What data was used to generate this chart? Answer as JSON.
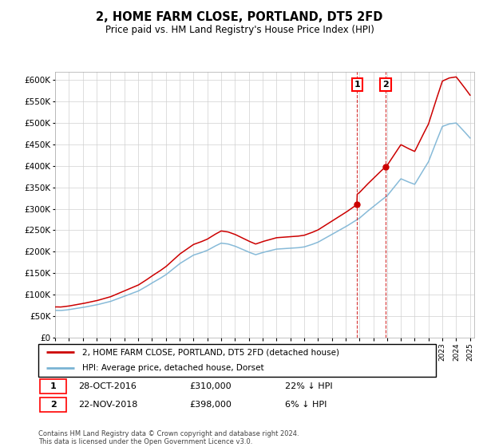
{
  "title": "2, HOME FARM CLOSE, PORTLAND, DT5 2FD",
  "subtitle": "Price paid vs. HM Land Registry's House Price Index (HPI)",
  "ylim": [
    0,
    620000
  ],
  "yticks": [
    0,
    50000,
    100000,
    150000,
    200000,
    250000,
    300000,
    350000,
    400000,
    450000,
    500000,
    550000,
    600000
  ],
  "ytick_labels": [
    "£0",
    "£50K",
    "£100K",
    "£150K",
    "£200K",
    "£250K",
    "£300K",
    "£350K",
    "£400K",
    "£450K",
    "£500K",
    "£550K",
    "£600K"
  ],
  "hpi_color": "#7ab3d4",
  "price_color": "#cc0000",
  "vline_color": "#cc0000",
  "transaction1_year": 2016.83,
  "transaction1_price": 310000,
  "transaction2_year": 2018.9,
  "transaction2_price": 398000,
  "legend_line1": "2, HOME FARM CLOSE, PORTLAND, DT5 2FD (detached house)",
  "legend_line2": "HPI: Average price, detached house, Dorset",
  "note1_date": "28-OCT-2016",
  "note1_price": "£310,000",
  "note1_hpi": "22% ↓ HPI",
  "note2_date": "22-NOV-2018",
  "note2_price": "£398,000",
  "note2_hpi": "6% ↓ HPI",
  "footer": "Contains HM Land Registry data © Crown copyright and database right 2024.\nThis data is licensed under the Open Government Licence v3.0.",
  "hpi_x": [
    1995.0,
    1995.08,
    1995.17,
    1995.25,
    1995.33,
    1995.42,
    1995.5,
    1995.58,
    1995.67,
    1995.75,
    1995.83,
    1995.92,
    1996.0,
    1996.5,
    1997.0,
    1997.5,
    1998.0,
    1998.5,
    1999.0,
    1999.5,
    2000.0,
    2000.5,
    2001.0,
    2001.5,
    2002.0,
    2002.5,
    2003.0,
    2003.5,
    2004.0,
    2004.5,
    2005.0,
    2005.5,
    2006.0,
    2006.5,
    2007.0,
    2007.5,
    2008.0,
    2008.5,
    2009.0,
    2009.5,
    2010.0,
    2010.5,
    2011.0,
    2011.5,
    2012.0,
    2012.5,
    2013.0,
    2013.5,
    2014.0,
    2014.5,
    2015.0,
    2015.5,
    2016.0,
    2016.5,
    2017.0,
    2017.5,
    2018.0,
    2018.5,
    2019.0,
    2019.5,
    2020.0,
    2020.5,
    2021.0,
    2021.5,
    2022.0,
    2022.5,
    2023.0,
    2023.5,
    2024.0,
    2024.5,
    2025.0
  ],
  "hpi_y": [
    63000,
    63200,
    63100,
    63000,
    62800,
    63000,
    63200,
    63500,
    63800,
    64000,
    64200,
    64500,
    65000,
    67500,
    70000,
    73000,
    76000,
    80000,
    84000,
    90000,
    96000,
    102000,
    108000,
    117000,
    127000,
    136000,
    146000,
    159000,
    172000,
    182000,
    192000,
    197000,
    203000,
    212000,
    220000,
    218000,
    213000,
    206000,
    199000,
    193000,
    198000,
    202000,
    206000,
    207000,
    208000,
    209000,
    211000,
    216000,
    222000,
    231000,
    240000,
    249000,
    258000,
    268000,
    278000,
    292000,
    305000,
    318000,
    330000,
    350000,
    370000,
    363000,
    357000,
    384000,
    410000,
    452000,
    492000,
    498000,
    500000,
    483000,
    465000
  ],
  "xlim_start": 1995,
  "xlim_end": 2025.3
}
